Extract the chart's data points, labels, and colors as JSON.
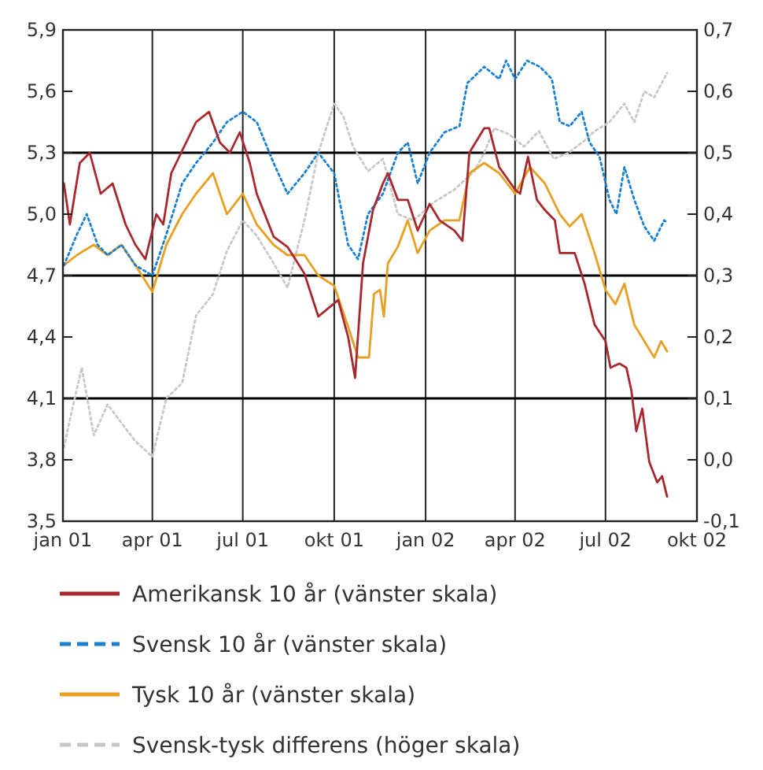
{
  "chart_data": {
    "type": "line",
    "xlim": [
      "2001-01-01",
      "2002-10-01"
    ],
    "xticks": [
      {
        "value": "2001-01-01",
        "label": "jan 01"
      },
      {
        "value": "2001-04-01",
        "label": "apr 01"
      },
      {
        "value": "2001-07-01",
        "label": "jul 01"
      },
      {
        "value": "2001-10-01",
        "label": "okt 01"
      },
      {
        "value": "2002-01-01",
        "label": "jan 02"
      },
      {
        "value": "2002-04-01",
        "label": "apr 02"
      },
      {
        "value": "2002-07-01",
        "label": "jul 02"
      },
      {
        "value": "2002-10-01",
        "label": "okt 02"
      }
    ],
    "ylim": [
      3.5,
      5.9
    ],
    "yticks": [
      {
        "value": 3.5,
        "label": "3,5"
      },
      {
        "value": 3.8,
        "label": "3,8"
      },
      {
        "value": 4.1,
        "label": "4,1"
      },
      {
        "value": 4.4,
        "label": "4,4"
      },
      {
        "value": 4.7,
        "label": "4,7"
      },
      {
        "value": 5.0,
        "label": "5,0"
      },
      {
        "value": 5.3,
        "label": "5,3"
      },
      {
        "value": 5.6,
        "label": "5,6"
      },
      {
        "value": 5.9,
        "label": "5,9"
      }
    ],
    "y2lim": [
      -0.1,
      0.7
    ],
    "y2ticks": [
      {
        "value": -0.1,
        "label": "-0,1"
      },
      {
        "value": 0.0,
        "label": "0,0"
      },
      {
        "value": 0.1,
        "label": "0,1"
      },
      {
        "value": 0.2,
        "label": "0,2"
      },
      {
        "value": 0.3,
        "label": "0,3"
      },
      {
        "value": 0.4,
        "label": "0,4"
      },
      {
        "value": 0.5,
        "label": "0,5"
      },
      {
        "value": 0.6,
        "label": "0,6"
      },
      {
        "value": 0.7,
        "label": "0,7"
      }
    ],
    "grid": "x",
    "legend": "bottom",
    "ref_lines": [
      {
        "axis": "y",
        "value": 5.3
      },
      {
        "axis": "y",
        "value": 4.7
      },
      {
        "axis": "y",
        "value": 4.1
      }
    ],
    "series": [
      {
        "name": "Amerikansk 10 år (vänster skala)",
        "color": "#a8282e",
        "line_style": "solid",
        "x": [
          "2001-01-02",
          "2001-01-08",
          "2001-01-18",
          "2001-01-28",
          "2001-02-08",
          "2001-02-20",
          "2001-03-05",
          "2001-03-15",
          "2001-03-25",
          "2001-04-05",
          "2001-04-12",
          "2001-04-20",
          "2001-04-30",
          "2001-05-15",
          "2001-05-28",
          "2001-06-08",
          "2001-06-18",
          "2001-06-28",
          "2001-07-08",
          "2001-07-15",
          "2001-08-01",
          "2001-08-15",
          "2001-09-01",
          "2001-09-15",
          "2001-10-05",
          "2001-10-15",
          "2001-10-22",
          "2001-10-30",
          "2001-11-09",
          "2001-11-19",
          "2001-11-24",
          "2001-12-04",
          "2001-12-14",
          "2001-12-24",
          "2002-01-05",
          "2002-01-15",
          "2002-01-30",
          "2002-02-07",
          "2002-02-14",
          "2002-03-01",
          "2002-03-06",
          "2002-03-16",
          "2002-04-01",
          "2002-04-06",
          "2002-04-14",
          "2002-04-23",
          "2002-05-01",
          "2002-05-11",
          "2002-05-16",
          "2002-05-31",
          "2002-06-10",
          "2002-06-20",
          "2002-07-01",
          "2002-07-06",
          "2002-07-15",
          "2002-07-22",
          "2002-07-27",
          "2002-08-01",
          "2002-08-07",
          "2002-08-14",
          "2002-08-22",
          "2002-08-27",
          "2002-09-01"
        ],
        "values": [
          5.15,
          4.95,
          5.25,
          5.3,
          5.1,
          5.15,
          4.95,
          4.85,
          4.78,
          5.0,
          4.95,
          5.2,
          5.3,
          5.45,
          5.5,
          5.35,
          5.3,
          5.4,
          5.25,
          5.1,
          4.89,
          4.84,
          4.71,
          4.5,
          4.58,
          4.4,
          4.2,
          4.76,
          5.02,
          5.15,
          5.2,
          5.07,
          5.07,
          4.92,
          5.05,
          4.97,
          4.92,
          4.87,
          5.3,
          5.42,
          5.42,
          5.23,
          5.12,
          5.1,
          5.28,
          5.07,
          5.02,
          4.97,
          4.81,
          4.81,
          4.66,
          4.46,
          4.38,
          4.25,
          4.27,
          4.25,
          4.14,
          3.94,
          4.05,
          3.79,
          3.69,
          3.72,
          3.62
        ]
      },
      {
        "name": "Svensk 10 år (vänster skala)",
        "color": "#1a80d2",
        "line_style": "dotted",
        "x": [
          "2001-01-02",
          "2001-01-15",
          "2001-01-25",
          "2001-02-05",
          "2001-02-15",
          "2001-03-01",
          "2001-03-15",
          "2001-04-01",
          "2001-04-15",
          "2001-05-01",
          "2001-05-15",
          "2001-06-01",
          "2001-06-15",
          "2001-07-01",
          "2001-07-15",
          "2001-08-01",
          "2001-08-15",
          "2001-09-01",
          "2001-09-15",
          "2001-10-01",
          "2001-10-15",
          "2001-10-25",
          "2001-11-04",
          "2001-11-19",
          "2001-12-04",
          "2001-12-14",
          "2001-12-24",
          "2002-01-05",
          "2002-01-20",
          "2002-02-04",
          "2002-02-12",
          "2002-03-01",
          "2002-03-16",
          "2002-03-23",
          "2002-04-01",
          "2002-04-13",
          "2002-04-26",
          "2002-05-08",
          "2002-05-16",
          "2002-05-26",
          "2002-06-07",
          "2002-06-15",
          "2002-06-25",
          "2002-07-05",
          "2002-07-12",
          "2002-07-20",
          "2002-07-30",
          "2002-08-09",
          "2002-08-19",
          "2002-08-29",
          "2002-09-01"
        ],
        "values": [
          4.75,
          4.9,
          5.0,
          4.85,
          4.8,
          4.85,
          4.75,
          4.7,
          4.9,
          5.15,
          5.25,
          5.35,
          5.45,
          5.5,
          5.45,
          5.25,
          5.1,
          5.2,
          5.3,
          5.2,
          4.85,
          4.78,
          5.0,
          5.1,
          5.3,
          5.35,
          5.15,
          5.3,
          5.4,
          5.43,
          5.64,
          5.72,
          5.66,
          5.75,
          5.66,
          5.75,
          5.72,
          5.66,
          5.45,
          5.43,
          5.5,
          5.35,
          5.28,
          5.07,
          5.0,
          5.23,
          5.07,
          4.94,
          4.87,
          4.97,
          4.96
        ]
      },
      {
        "name": "Tysk 10 år (vänster skala)",
        "color": "#e8a024",
        "line_style": "solid",
        "x": [
          "2001-01-02",
          "2001-01-15",
          "2001-02-01",
          "2001-02-15",
          "2001-03-01",
          "2001-03-15",
          "2001-04-01",
          "2001-04-15",
          "2001-05-01",
          "2001-05-15",
          "2001-06-01",
          "2001-06-15",
          "2001-07-01",
          "2001-07-15",
          "2001-08-01",
          "2001-08-15",
          "2001-09-01",
          "2001-09-15",
          "2001-10-01",
          "2001-10-15",
          "2001-10-25",
          "2001-11-05",
          "2001-11-10",
          "2001-11-16",
          "2001-11-20",
          "2001-11-24",
          "2001-12-04",
          "2001-12-14",
          "2001-12-24",
          "2002-01-05",
          "2002-01-20",
          "2002-02-04",
          "2002-02-14",
          "2002-03-01",
          "2002-03-16",
          "2002-04-01",
          "2002-04-16",
          "2002-05-01",
          "2002-05-16",
          "2002-05-26",
          "2002-06-07",
          "2002-06-20",
          "2002-07-01",
          "2002-07-11",
          "2002-07-20",
          "2002-07-30",
          "2002-08-09",
          "2002-08-19",
          "2002-08-26",
          "2002-09-01"
        ],
        "values": [
          4.75,
          4.8,
          4.85,
          4.8,
          4.85,
          4.75,
          4.62,
          4.85,
          5.0,
          5.1,
          5.2,
          5.0,
          5.1,
          4.95,
          4.85,
          4.8,
          4.8,
          4.7,
          4.65,
          4.45,
          4.3,
          4.3,
          4.61,
          4.63,
          4.5,
          4.76,
          4.84,
          4.97,
          4.81,
          4.92,
          4.97,
          4.97,
          5.2,
          5.25,
          5.2,
          5.1,
          5.23,
          5.15,
          5.0,
          4.94,
          5.0,
          4.81,
          4.63,
          4.56,
          4.66,
          4.46,
          4.38,
          4.3,
          4.38,
          4.33
        ]
      },
      {
        "name": "Svensk-tysk differens (höger skala)",
        "color": "#c8c8c8",
        "line_style": "dotted",
        "axis": "y2",
        "x": [
          "2001-01-02",
          "2001-01-10",
          "2001-01-20",
          "2001-02-01",
          "2001-02-15",
          "2001-03-01",
          "2001-03-15",
          "2001-04-01",
          "2001-04-15",
          "2001-05-01",
          "2001-05-15",
          "2001-06-01",
          "2001-06-15",
          "2001-07-01",
          "2001-07-15",
          "2001-08-01",
          "2001-08-15",
          "2001-09-01",
          "2001-09-15",
          "2001-10-01",
          "2001-10-10",
          "2001-10-20",
          "2001-11-04",
          "2001-11-19",
          "2001-12-04",
          "2001-12-20",
          "2002-01-10",
          "2002-01-30",
          "2002-02-19",
          "2002-03-01",
          "2002-03-11",
          "2002-03-26",
          "2002-04-10",
          "2002-04-25",
          "2002-05-10",
          "2002-05-25",
          "2002-06-10",
          "2002-06-20",
          "2002-07-05",
          "2002-07-20",
          "2002-07-30",
          "2002-08-09",
          "2002-08-19",
          "2002-09-01"
        ],
        "values": [
          0.02,
          0.08,
          0.15,
          0.04,
          0.09,
          0.06,
          0.03,
          0.005,
          0.1,
          0.125,
          0.235,
          0.27,
          0.34,
          0.39,
          0.365,
          0.32,
          0.28,
          0.39,
          0.5,
          0.58,
          0.56,
          0.51,
          0.47,
          0.49,
          0.4,
          0.39,
          0.42,
          0.44,
          0.47,
          0.5,
          0.54,
          0.53,
          0.51,
          0.535,
          0.49,
          0.5,
          0.52,
          0.535,
          0.55,
          0.58,
          0.55,
          0.6,
          0.59,
          0.63
        ]
      }
    ]
  }
}
